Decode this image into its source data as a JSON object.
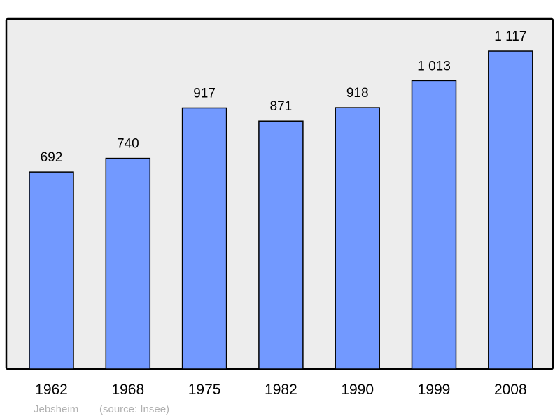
{
  "chart_data": {
    "type": "bar",
    "categories": [
      "1962",
      "1968",
      "1975",
      "1982",
      "1990",
      "1999",
      "2008"
    ],
    "values": [
      692,
      740,
      917,
      871,
      918,
      1013,
      1117
    ],
    "data_labels": [
      "692",
      "740",
      "917",
      "871",
      "918",
      "1 013",
      "1 117"
    ],
    "title": "",
    "xlabel": "",
    "ylabel": "",
    "ylim": [
      0,
      1230
    ],
    "grid": false,
    "colors": {
      "bar": "#7299ff",
      "plot_bg": "#ededed",
      "border": "#000000"
    }
  },
  "footer": {
    "place": "Jebsheim",
    "source": "(source: Insee)"
  }
}
